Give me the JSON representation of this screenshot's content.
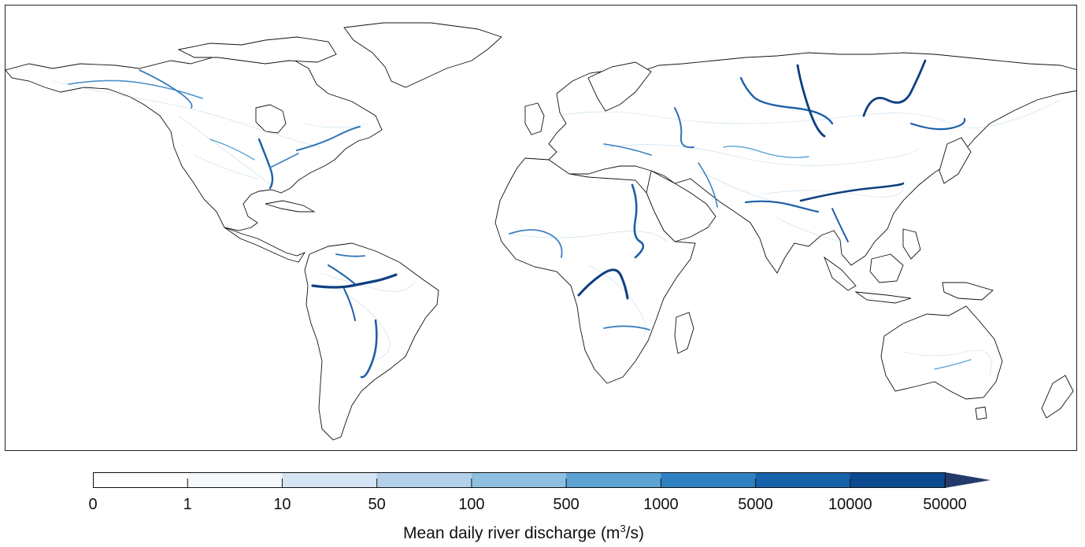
{
  "map": {
    "legend_title": "Mean daily river discharge (m",
    "legend_title_sup": "3",
    "legend_title_tail": "/s)",
    "land_outline_color": "#111111",
    "river_color_low": "#d6e6f5",
    "river_color_high": "#0a3f85",
    "colorbar": {
      "ticks": [
        "0",
        "1",
        "10",
        "50",
        "100",
        "500",
        "1000",
        "5000",
        "10000",
        "50000"
      ],
      "colors": [
        "#ffffff",
        "#f3f8fd",
        "#d4e4f3",
        "#b3d1ea",
        "#8ebfe0",
        "#5ca3d3",
        "#2f80c1",
        "#1662aa",
        "#0b4a8f"
      ],
      "extend_color": "#233a6b",
      "extend": "max"
    }
  }
}
